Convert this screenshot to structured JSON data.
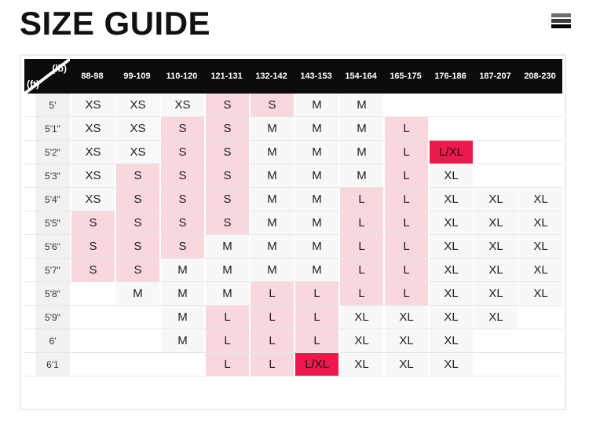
{
  "page": {
    "title": "SIZE GUIDE"
  },
  "menu_button": {
    "bar_colors": [
      "#6e6e6e",
      "#3c3c3c",
      "#000000"
    ]
  },
  "size_table": {
    "corner": {
      "top_right_label": "(lb)",
      "bottom_left_label": "(ft)"
    },
    "weight_columns_lb": [
      "88-98",
      "99-109",
      "110-120",
      "121-131",
      "132-142",
      "143-153",
      "154-164",
      "165-175",
      "176-186",
      "187-207",
      "208-230"
    ],
    "marker_meaning": {
      "*": "light-pink highlighted cell",
      "**": "bright-pink selected cell",
      "empty string": "no size for this height/weight"
    },
    "rows": [
      {
        "height_ft": "5'",
        "cells": [
          "XS",
          "XS",
          "XS",
          "S*",
          "S*",
          "M",
          "M",
          "",
          "",
          "",
          ""
        ]
      },
      {
        "height_ft": "5'1\"",
        "cells": [
          "XS",
          "XS",
          "S*",
          "S*",
          "M",
          "M",
          "M",
          "L*",
          "",
          "",
          ""
        ]
      },
      {
        "height_ft": "5'2\"",
        "cells": [
          "XS",
          "XS",
          "S*",
          "S*",
          "M",
          "M",
          "M",
          "L*",
          "L/XL**",
          "",
          ""
        ]
      },
      {
        "height_ft": "5'3\"",
        "cells": [
          "XS",
          "S*",
          "S*",
          "S*",
          "M",
          "M",
          "M",
          "L*",
          "XL",
          "",
          ""
        ]
      },
      {
        "height_ft": "5'4\"",
        "cells": [
          "XS",
          "S*",
          "S*",
          "S*",
          "M",
          "M",
          "L*",
          "L*",
          "XL",
          "XL",
          "XL"
        ]
      },
      {
        "height_ft": "5'5\"",
        "cells": [
          "S*",
          "S*",
          "S*",
          "S*",
          "M",
          "M",
          "L*",
          "L*",
          "XL",
          "XL",
          "XL"
        ]
      },
      {
        "height_ft": "5'6\"",
        "cells": [
          "S*",
          "S*",
          "S*",
          "M",
          "M",
          "M",
          "L*",
          "L*",
          "XL",
          "XL",
          "XL"
        ]
      },
      {
        "height_ft": "5'7\"",
        "cells": [
          "S*",
          "S*",
          "M",
          "M",
          "M",
          "M",
          "L*",
          "L*",
          "XL",
          "XL",
          "XL"
        ]
      },
      {
        "height_ft": "5'8\"",
        "cells": [
          "",
          "M",
          "M",
          "M",
          "L*",
          "L*",
          "L*",
          "L*",
          "XL",
          "XL",
          "XL"
        ]
      },
      {
        "height_ft": "5'9\"",
        "cells": [
          "",
          "",
          "M",
          "L*",
          "L*",
          "L*",
          "XL",
          "XL",
          "XL",
          "XL",
          ""
        ]
      },
      {
        "height_ft": "6'",
        "cells": [
          "",
          "",
          "M",
          "L*",
          "L*",
          "L*",
          "XL",
          "XL",
          "XL",
          "",
          ""
        ]
      },
      {
        "height_ft": "6'1",
        "cells": [
          "",
          "",
          "",
          "L*",
          "L*",
          "L/XL**",
          "XL",
          "XL",
          "XL",
          "",
          ""
        ]
      }
    ],
    "colors": {
      "header_bg": "#0c0c0c",
      "header_text": "#ffffff",
      "cell_bg": "#f8f8f8",
      "highlight_light": "#f8d7dd",
      "highlight_strong": "#ee1a4d",
      "row_label_bg": "#f1f1f1",
      "cell_text": "#1d1d1d"
    }
  }
}
